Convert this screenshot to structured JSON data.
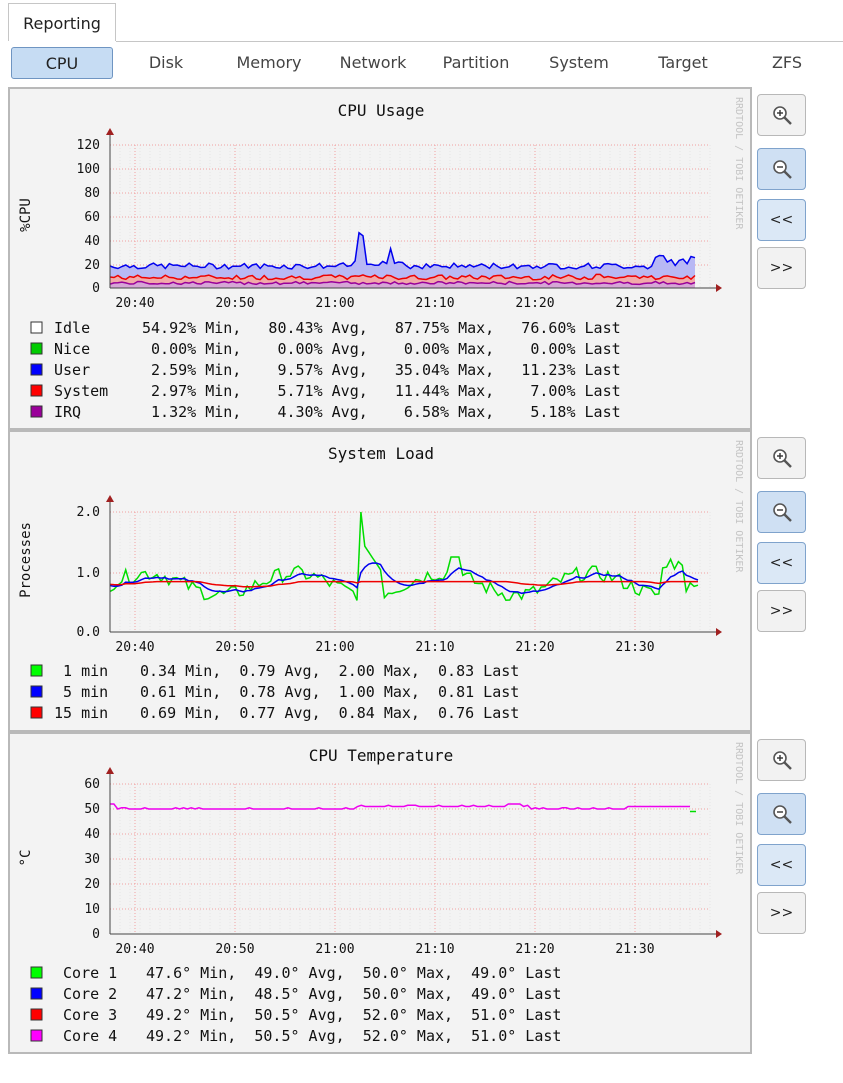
{
  "tabs": {
    "main": "Reporting"
  },
  "subtabs": [
    "CPU",
    "Disk",
    "Memory",
    "Network",
    "Partition",
    "System",
    "Target",
    "ZFS"
  ],
  "active_subtab": "CPU",
  "watermark": "RRDTOOL / TOBI OETIKER",
  "controls": {
    "zoom_in": "zoom-in",
    "zoom_out": "zoom-out",
    "prev": "<<",
    "next": ">>"
  },
  "graphs": [
    {
      "title": "CPU Usage",
      "ylabel": "%CPU",
      "yticks": [
        "120",
        "100",
        "80",
        "60",
        "40",
        "20",
        "0"
      ],
      "xticks": [
        "20:40",
        "20:50",
        "21:00",
        "21:10",
        "21:20",
        "21:30"
      ],
      "legend": [
        {
          "name": "Idle  ",
          "color": "#ffffff",
          "text": "54.92% Min,   80.43% Avg,   87.75% Max,   76.60% Last"
        },
        {
          "name": "Nice  ",
          "color": "#00cc00",
          "text": " 0.00% Min,    0.00% Avg,    0.00% Max,    0.00% Last"
        },
        {
          "name": "User  ",
          "color": "#0000ff",
          "text": " 2.59% Min,    9.57% Avg,   35.04% Max,   11.23% Last"
        },
        {
          "name": "System",
          "color": "#ff0000",
          "text": " 2.97% Min,    5.71% Avg,   11.44% Max,    7.00% Last"
        },
        {
          "name": "IRQ   ",
          "color": "#990099",
          "text": " 1.32% Min,    4.30% Avg,    6.58% Max,    5.18% Last"
        }
      ]
    },
    {
      "title": "System Load",
      "ylabel": "Processes",
      "yticks": [
        "2.0",
        "1.0",
        "0.0"
      ],
      "xticks": [
        "20:40",
        "20:50",
        "21:00",
        "21:10",
        "21:20",
        "21:30"
      ],
      "legend": [
        {
          "name": " 1 min",
          "color": "#00ff00",
          "text": "0.34 Min,  0.79 Avg,  2.00 Max,  0.83 Last"
        },
        {
          "name": " 5 min",
          "color": "#0000ff",
          "text": "0.61 Min,  0.78 Avg,  1.00 Max,  0.81 Last"
        },
        {
          "name": "15 min",
          "color": "#ff0000",
          "text": "0.69 Min,  0.77 Avg,  0.84 Max,  0.76 Last"
        }
      ]
    },
    {
      "title": "CPU Temperature",
      "ylabel": "°C",
      "yticks": [
        "60",
        "50",
        "40",
        "30",
        "20",
        "10",
        "0"
      ],
      "xticks": [
        "20:40",
        "20:50",
        "21:00",
        "21:10",
        "21:20",
        "21:30"
      ],
      "legend": [
        {
          "name": " Core 1",
          "color": "#00ff00",
          "text": "47.6° Min,  49.0° Avg,  50.0° Max,  49.0° Last"
        },
        {
          "name": " Core 2",
          "color": "#0000ff",
          "text": "47.2° Min,  48.5° Avg,  50.0° Max,  49.0° Last"
        },
        {
          "name": " Core 3",
          "color": "#ff0000",
          "text": "49.2° Min,  50.5° Avg,  52.0° Max,  51.0° Last"
        },
        {
          "name": " Core 4",
          "color": "#ff00ff",
          "text": "49.2° Min,  50.5° Avg,  52.0° Max,  51.0° Last"
        }
      ]
    }
  ]
}
